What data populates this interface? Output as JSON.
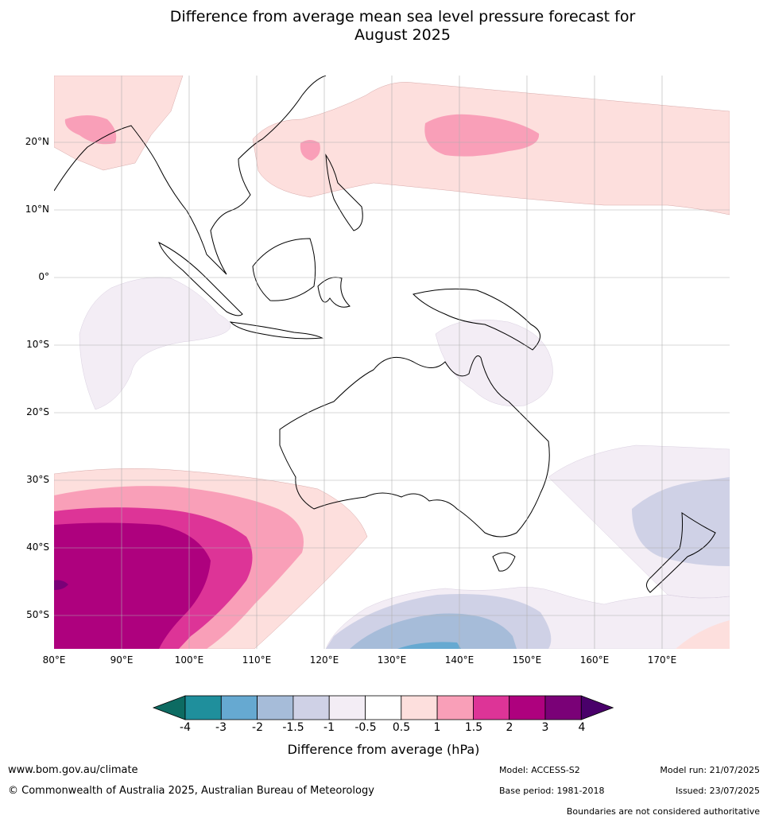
{
  "title_line1": "Difference from average mean sea level pressure forecast for",
  "title_line2": "August 2025",
  "map": {
    "lat_labels": [
      "20°N",
      "10°N",
      "0°",
      "10°S",
      "20°S",
      "30°S",
      "40°S",
      "50°S"
    ],
    "lon_labels": [
      "80°E",
      "90°E",
      "100°E",
      "110°E",
      "120°E",
      "130°E",
      "140°E",
      "150°E",
      "160°E",
      "170°E"
    ]
  },
  "colorbar": {
    "ticks": [
      "-4",
      "-3",
      "-2",
      "-1.5",
      "-1",
      "-0.5",
      "0.5",
      "1",
      "1.5",
      "2",
      "3",
      "4"
    ],
    "colors": [
      "#0d6b62",
      "#1f8f9c",
      "#66a9d1",
      "#a6bcd9",
      "#cfd1e6",
      "#f3edf5",
      "#ffffff",
      "#fddfdd",
      "#f99fb8",
      "#dd3497",
      "#ae017e",
      "#7a0177",
      "#49006a"
    ],
    "label": "Difference from average (hPa)"
  },
  "footer": {
    "website": "www.bom.gov.au/climate",
    "copyright": "© Commonwealth of Australia 2025, Australian Bureau of Meteorology",
    "model": "Model: ACCESS-S2",
    "base_period": "Base period: 1981-2018",
    "model_run": "Model run: 21/07/2025",
    "issued": "Issued: 23/07/2025",
    "disclaimer": "Boundaries are not considered authoritative"
  }
}
